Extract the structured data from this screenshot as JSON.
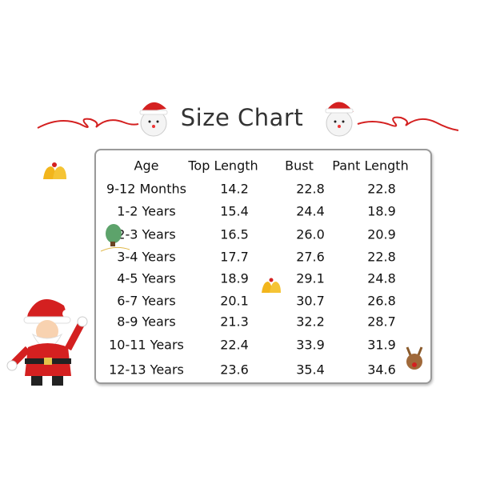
{
  "title": "Size Chart",
  "table": {
    "headers": [
      "Age",
      "Top Length",
      "Bust",
      "Pant Length"
    ],
    "rows": [
      [
        "9-12 Months",
        "14.2",
        "22.8",
        "22.8"
      ],
      [
        "1-2 Years",
        "15.4",
        "24.4",
        "18.9"
      ],
      [
        "2-3 Years",
        "16.5",
        "26.0",
        "20.9"
      ],
      [
        "3-4 Years",
        "17.7",
        "27.6",
        "22.8"
      ],
      [
        "4-5 Years",
        "18.9",
        "29.1",
        "24.8"
      ],
      [
        "6-7 Years",
        "20.1",
        "30.7",
        "26.8"
      ],
      [
        "8-9 Years",
        "21.3",
        "32.2",
        "28.7"
      ],
      [
        "10-11 Years",
        "22.4",
        "33.9",
        "31.9"
      ],
      [
        "12-13 Years",
        "23.6",
        "35.4",
        "34.6"
      ]
    ]
  },
  "colors": {
    "ribbon": "#d42020",
    "border": "#9a9a9a",
    "text": "#111111"
  }
}
